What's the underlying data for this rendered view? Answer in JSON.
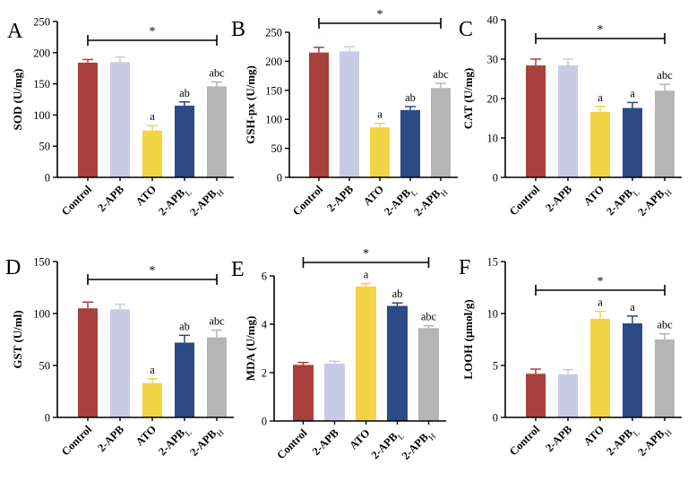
{
  "chart_data": [
    {
      "type": "bar",
      "panel": "A",
      "ylabel": "SOD (U/mg)",
      "ylim": [
        0,
        250
      ],
      "yticks": [
        0,
        50,
        100,
        150,
        200,
        250
      ],
      "categories": [
        "Control",
        "2-APB",
        "ATO",
        "2-APB",
        "2-APB"
      ],
      "subscripts": [
        "",
        "",
        "",
        "L",
        "H"
      ],
      "values": [
        184,
        185,
        75,
        115,
        146
      ],
      "errors": [
        5,
        8,
        8,
        6,
        7
      ],
      "annotations": [
        "",
        "",
        "a",
        "ab",
        "abc"
      ],
      "significance": "*"
    },
    {
      "type": "bar",
      "panel": "B",
      "ylabel": "GSH-px (U/mg)",
      "ylim": [
        0,
        250
      ],
      "yticks": [
        0,
        50,
        100,
        150,
        200,
        250
      ],
      "categories": [
        "Control",
        "2-APB",
        "ATO",
        "2-APB",
        "2-APB"
      ],
      "subscripts": [
        "",
        "",
        "",
        "L",
        "H"
      ],
      "values": [
        215,
        217,
        86,
        116,
        154
      ],
      "errors": [
        9,
        8,
        7,
        6,
        8
      ],
      "annotations": [
        "",
        "",
        "a",
        "ab",
        "abc"
      ],
      "significance": "*"
    },
    {
      "type": "bar",
      "panel": "C",
      "ylabel": "CAT (U/mg)",
      "ylim": [
        0,
        40
      ],
      "yticks": [
        0,
        10,
        20,
        30,
        40
      ],
      "categories": [
        "Control",
        "2-APB",
        "ATO",
        "2-APB",
        "2-APB"
      ],
      "subscripts": [
        "",
        "",
        "",
        "L",
        "H"
      ],
      "values": [
        28.4,
        28.4,
        16.6,
        17.6,
        22
      ],
      "errors": [
        1.6,
        1.6,
        1.4,
        1.4,
        1.6
      ],
      "annotations": [
        "",
        "",
        "a",
        "a",
        "abc"
      ],
      "significance": "*"
    },
    {
      "type": "bar",
      "panel": "D",
      "ylabel": "GST (U/ml)",
      "ylim": [
        0,
        150
      ],
      "yticks": [
        0,
        50,
        100,
        150
      ],
      "categories": [
        "Control",
        "2-APB",
        "ATO",
        "2-APB",
        "2-APB"
      ],
      "subscripts": [
        "",
        "",
        "",
        "L",
        "H"
      ],
      "values": [
        105,
        104,
        33,
        72,
        77
      ],
      "errors": [
        6,
        5,
        4,
        7,
        7
      ],
      "annotations": [
        "",
        "",
        "a",
        "ab",
        "abc"
      ],
      "significance": "*"
    },
    {
      "type": "bar",
      "panel": "E",
      "ylabel": "MDA (U/mg)",
      "ylim": [
        0,
        6
      ],
      "yticks": [
        0,
        2,
        4,
        6
      ],
      "categories": [
        "Control",
        "2-APB",
        "ATO",
        "2-APB",
        "2-APB"
      ],
      "subscripts": [
        "",
        "",
        "",
        "L",
        "H"
      ],
      "values": [
        2.32,
        2.37,
        5.56,
        4.76,
        3.84
      ],
      "errors": [
        0.1,
        0.1,
        0.12,
        0.12,
        0.1
      ],
      "annotations": [
        "",
        "",
        "a",
        "ab",
        "abc"
      ],
      "significance": "*"
    },
    {
      "type": "bar",
      "panel": "F",
      "ylabel": "LOOH (μmol/g)",
      "ylim": [
        0,
        15
      ],
      "yticks": [
        0,
        5,
        10,
        15
      ],
      "categories": [
        "Control",
        "2-APB",
        "ATO",
        "2-APB",
        "2-APB"
      ],
      "subscripts": [
        "",
        "",
        "",
        "L",
        "H"
      ],
      "values": [
        4.2,
        4.15,
        9.5,
        9.05,
        7.5
      ],
      "errors": [
        0.45,
        0.45,
        0.7,
        0.7,
        0.55
      ],
      "annotations": [
        "",
        "",
        "a",
        "a",
        "abc"
      ],
      "significance": "*"
    }
  ],
  "colors": {
    "bars": [
      "#a8403d",
      "#c9cbe6",
      "#f2d445",
      "#2b4a86",
      "#b5b5b5"
    ],
    "axis": "#000000"
  }
}
